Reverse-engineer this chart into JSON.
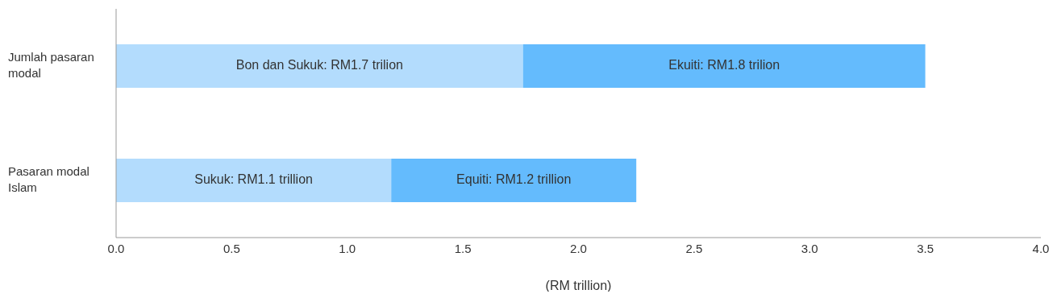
{
  "chart_data": {
    "type": "bar",
    "orientation": "horizontal",
    "stacked": true,
    "xlabel": "(RM trillion)",
    "categories": [
      "Jumlah pasaran modal",
      "Pasaran modal Islam"
    ],
    "series": [
      {
        "color": "#b3dcfd",
        "values": [
          1.76,
          1.19
        ],
        "value_labels": [
          "Bon dan Sukuk: RM1.7 trilion",
          "Sukuk: RM1.1 trillion"
        ]
      },
      {
        "color": "#64bbfd",
        "values": [
          1.74,
          1.06
        ],
        "value_labels": [
          "Ekuiti: RM1.8 trilion",
          "Equiti: RM1.2 trillion"
        ]
      }
    ],
    "xlim": [
      0,
      4
    ],
    "xticks": [
      {
        "value": 0,
        "label": "0.0"
      },
      {
        "value": 0.5,
        "label": "0.5"
      },
      {
        "value": 1,
        "label": "1.0"
      },
      {
        "value": 1.5,
        "label": "1.5"
      },
      {
        "value": 2,
        "label": "2.0"
      },
      {
        "value": 2.5,
        "label": "2.5"
      },
      {
        "value": 3,
        "label": "3.0"
      },
      {
        "value": 3.5,
        "label": "3.5"
      },
      {
        "value": 4,
        "label": "4.0"
      }
    ]
  }
}
